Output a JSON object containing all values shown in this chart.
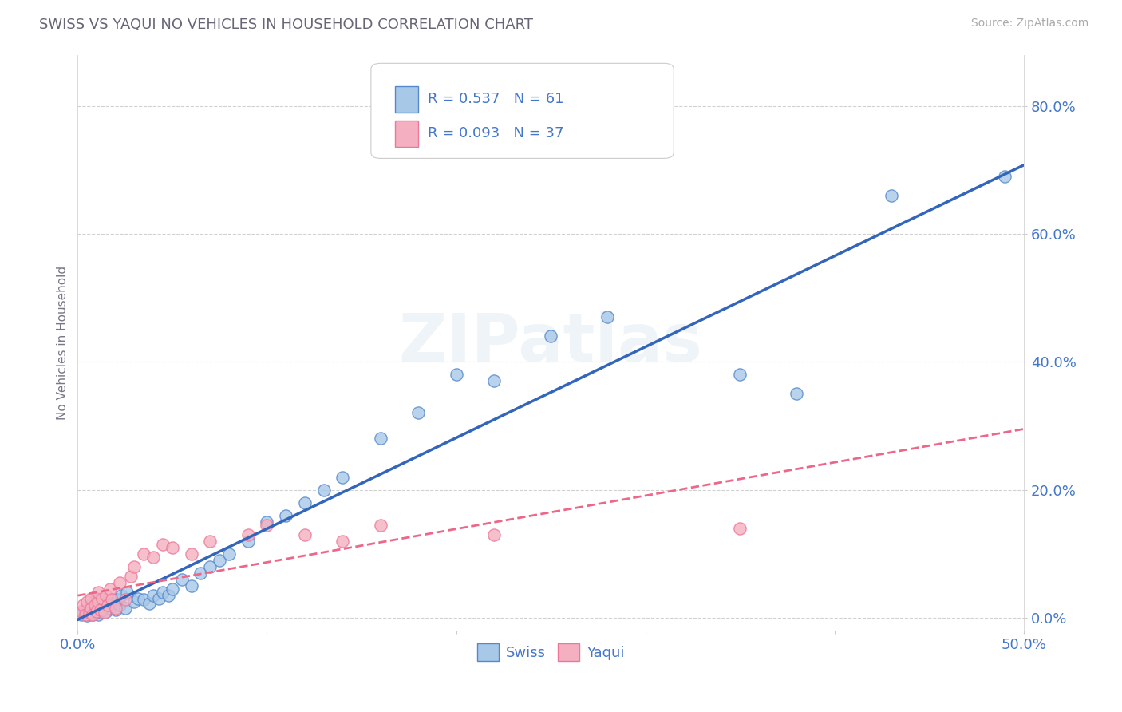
{
  "title": "SWISS VS YAQUI NO VEHICLES IN HOUSEHOLD CORRELATION CHART",
  "source_text": "Source: ZipAtlas.com",
  "ylabel": "No Vehicles in Household",
  "yticks_labels": [
    "0.0%",
    "20.0%",
    "40.0%",
    "60.0%",
    "80.0%"
  ],
  "ytick_values": [
    0.0,
    0.2,
    0.4,
    0.6,
    0.8
  ],
  "xlim": [
    0.0,
    0.5
  ],
  "ylim": [
    -0.02,
    0.88
  ],
  "swiss_r": "0.537",
  "swiss_n": "61",
  "yaqui_r": "0.093",
  "yaqui_n": "37",
  "swiss_color": "#a8c8e8",
  "yaqui_color": "#f4b0c0",
  "swiss_edge_color": "#5588cc",
  "yaqui_edge_color": "#ee7799",
  "swiss_line_color": "#3366bb",
  "yaqui_line_color": "#ee6688",
  "legend_text_color": "#4477cc",
  "title_color": "#666677",
  "source_color": "#aaaaaa",
  "watermark": "ZIPatlas",
  "background_color": "#ffffff",
  "grid_color": "#cccccc",
  "swiss_x": [
    0.002,
    0.003,
    0.004,
    0.005,
    0.005,
    0.006,
    0.007,
    0.007,
    0.008,
    0.008,
    0.009,
    0.009,
    0.01,
    0.01,
    0.011,
    0.011,
    0.012,
    0.012,
    0.013,
    0.014,
    0.015,
    0.016,
    0.017,
    0.018,
    0.02,
    0.021,
    0.022,
    0.023,
    0.025,
    0.026,
    0.03,
    0.032,
    0.035,
    0.038,
    0.04,
    0.043,
    0.045,
    0.048,
    0.05,
    0.055,
    0.06,
    0.065,
    0.07,
    0.075,
    0.08,
    0.09,
    0.1,
    0.11,
    0.12,
    0.13,
    0.14,
    0.16,
    0.18,
    0.2,
    0.22,
    0.25,
    0.28,
    0.35,
    0.38,
    0.43,
    0.49
  ],
  "swiss_y": [
    0.005,
    0.01,
    0.008,
    0.012,
    0.003,
    0.015,
    0.007,
    0.018,
    0.005,
    0.02,
    0.008,
    0.025,
    0.01,
    0.03,
    0.005,
    0.015,
    0.008,
    0.02,
    0.012,
    0.025,
    0.01,
    0.018,
    0.015,
    0.022,
    0.012,
    0.028,
    0.02,
    0.035,
    0.015,
    0.04,
    0.025,
    0.03,
    0.028,
    0.022,
    0.035,
    0.03,
    0.04,
    0.035,
    0.045,
    0.06,
    0.05,
    0.07,
    0.08,
    0.09,
    0.1,
    0.12,
    0.15,
    0.16,
    0.18,
    0.2,
    0.22,
    0.28,
    0.32,
    0.38,
    0.37,
    0.44,
    0.47,
    0.38,
    0.35,
    0.66,
    0.69
  ],
  "yaqui_x": [
    0.002,
    0.003,
    0.004,
    0.005,
    0.006,
    0.007,
    0.007,
    0.008,
    0.009,
    0.01,
    0.011,
    0.011,
    0.012,
    0.013,
    0.014,
    0.015,
    0.016,
    0.017,
    0.018,
    0.02,
    0.022,
    0.025,
    0.028,
    0.03,
    0.035,
    0.04,
    0.045,
    0.05,
    0.06,
    0.07,
    0.09,
    0.1,
    0.12,
    0.14,
    0.16,
    0.22,
    0.35
  ],
  "yaqui_y": [
    0.01,
    0.02,
    0.005,
    0.025,
    0.008,
    0.015,
    0.03,
    0.005,
    0.02,
    0.01,
    0.025,
    0.04,
    0.012,
    0.03,
    0.008,
    0.035,
    0.02,
    0.045,
    0.028,
    0.015,
    0.055,
    0.028,
    0.065,
    0.08,
    0.1,
    0.095,
    0.115,
    0.11,
    0.1,
    0.12,
    0.13,
    0.145,
    0.13,
    0.12,
    0.145,
    0.13,
    0.14
  ]
}
